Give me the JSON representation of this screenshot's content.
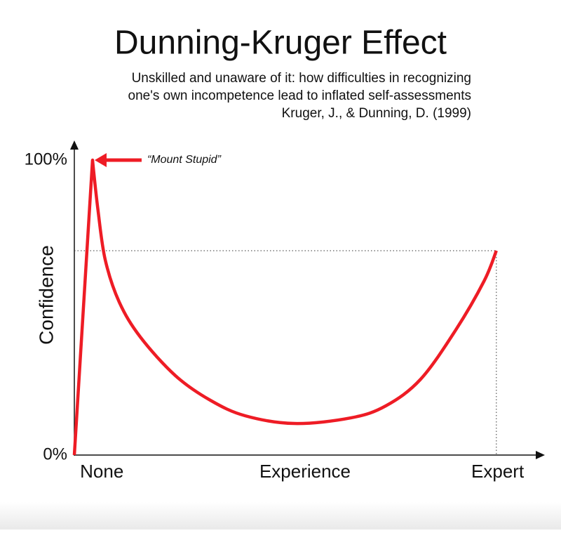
{
  "chart_data": {
    "type": "line",
    "title": "Dunning-Kruger Effect",
    "subtitle": [
      "Unskilled and unaware of it: how difficulties in recognizing",
      "one's own incompetence lead to inflated self-assessments",
      "Kruger, J., & Dunning, D. (1999)"
    ],
    "y_label": "Confidence",
    "annotation": "“Mount Stupid”",
    "x": [
      0,
      4.3,
      5.6,
      7.3,
      10.6,
      15.6,
      23.9,
      32.1,
      40.4,
      52,
      65.3,
      73.6,
      81.8,
      90.1,
      96.8,
      99.7
    ],
    "values": [
      0,
      100,
      82.9,
      66.2,
      51.9,
      40,
      26.9,
      18.6,
      13.3,
      10.7,
      12.6,
      16.7,
      25.7,
      42.4,
      59,
      69.3
    ],
    "color": "#ee1c25",
    "xlim": [
      0,
      110
    ],
    "ylim": [
      0,
      105
    ],
    "xticks": [
      {
        "value": 6.5,
        "label": "None"
      },
      {
        "value": 54.5,
        "label": "Experience"
      },
      {
        "value": 100,
        "label": "Expert"
      }
    ],
    "yticks": [
      {
        "value": 0,
        "label": "0%"
      },
      {
        "value": 100,
        "label": "100%"
      }
    ]
  }
}
